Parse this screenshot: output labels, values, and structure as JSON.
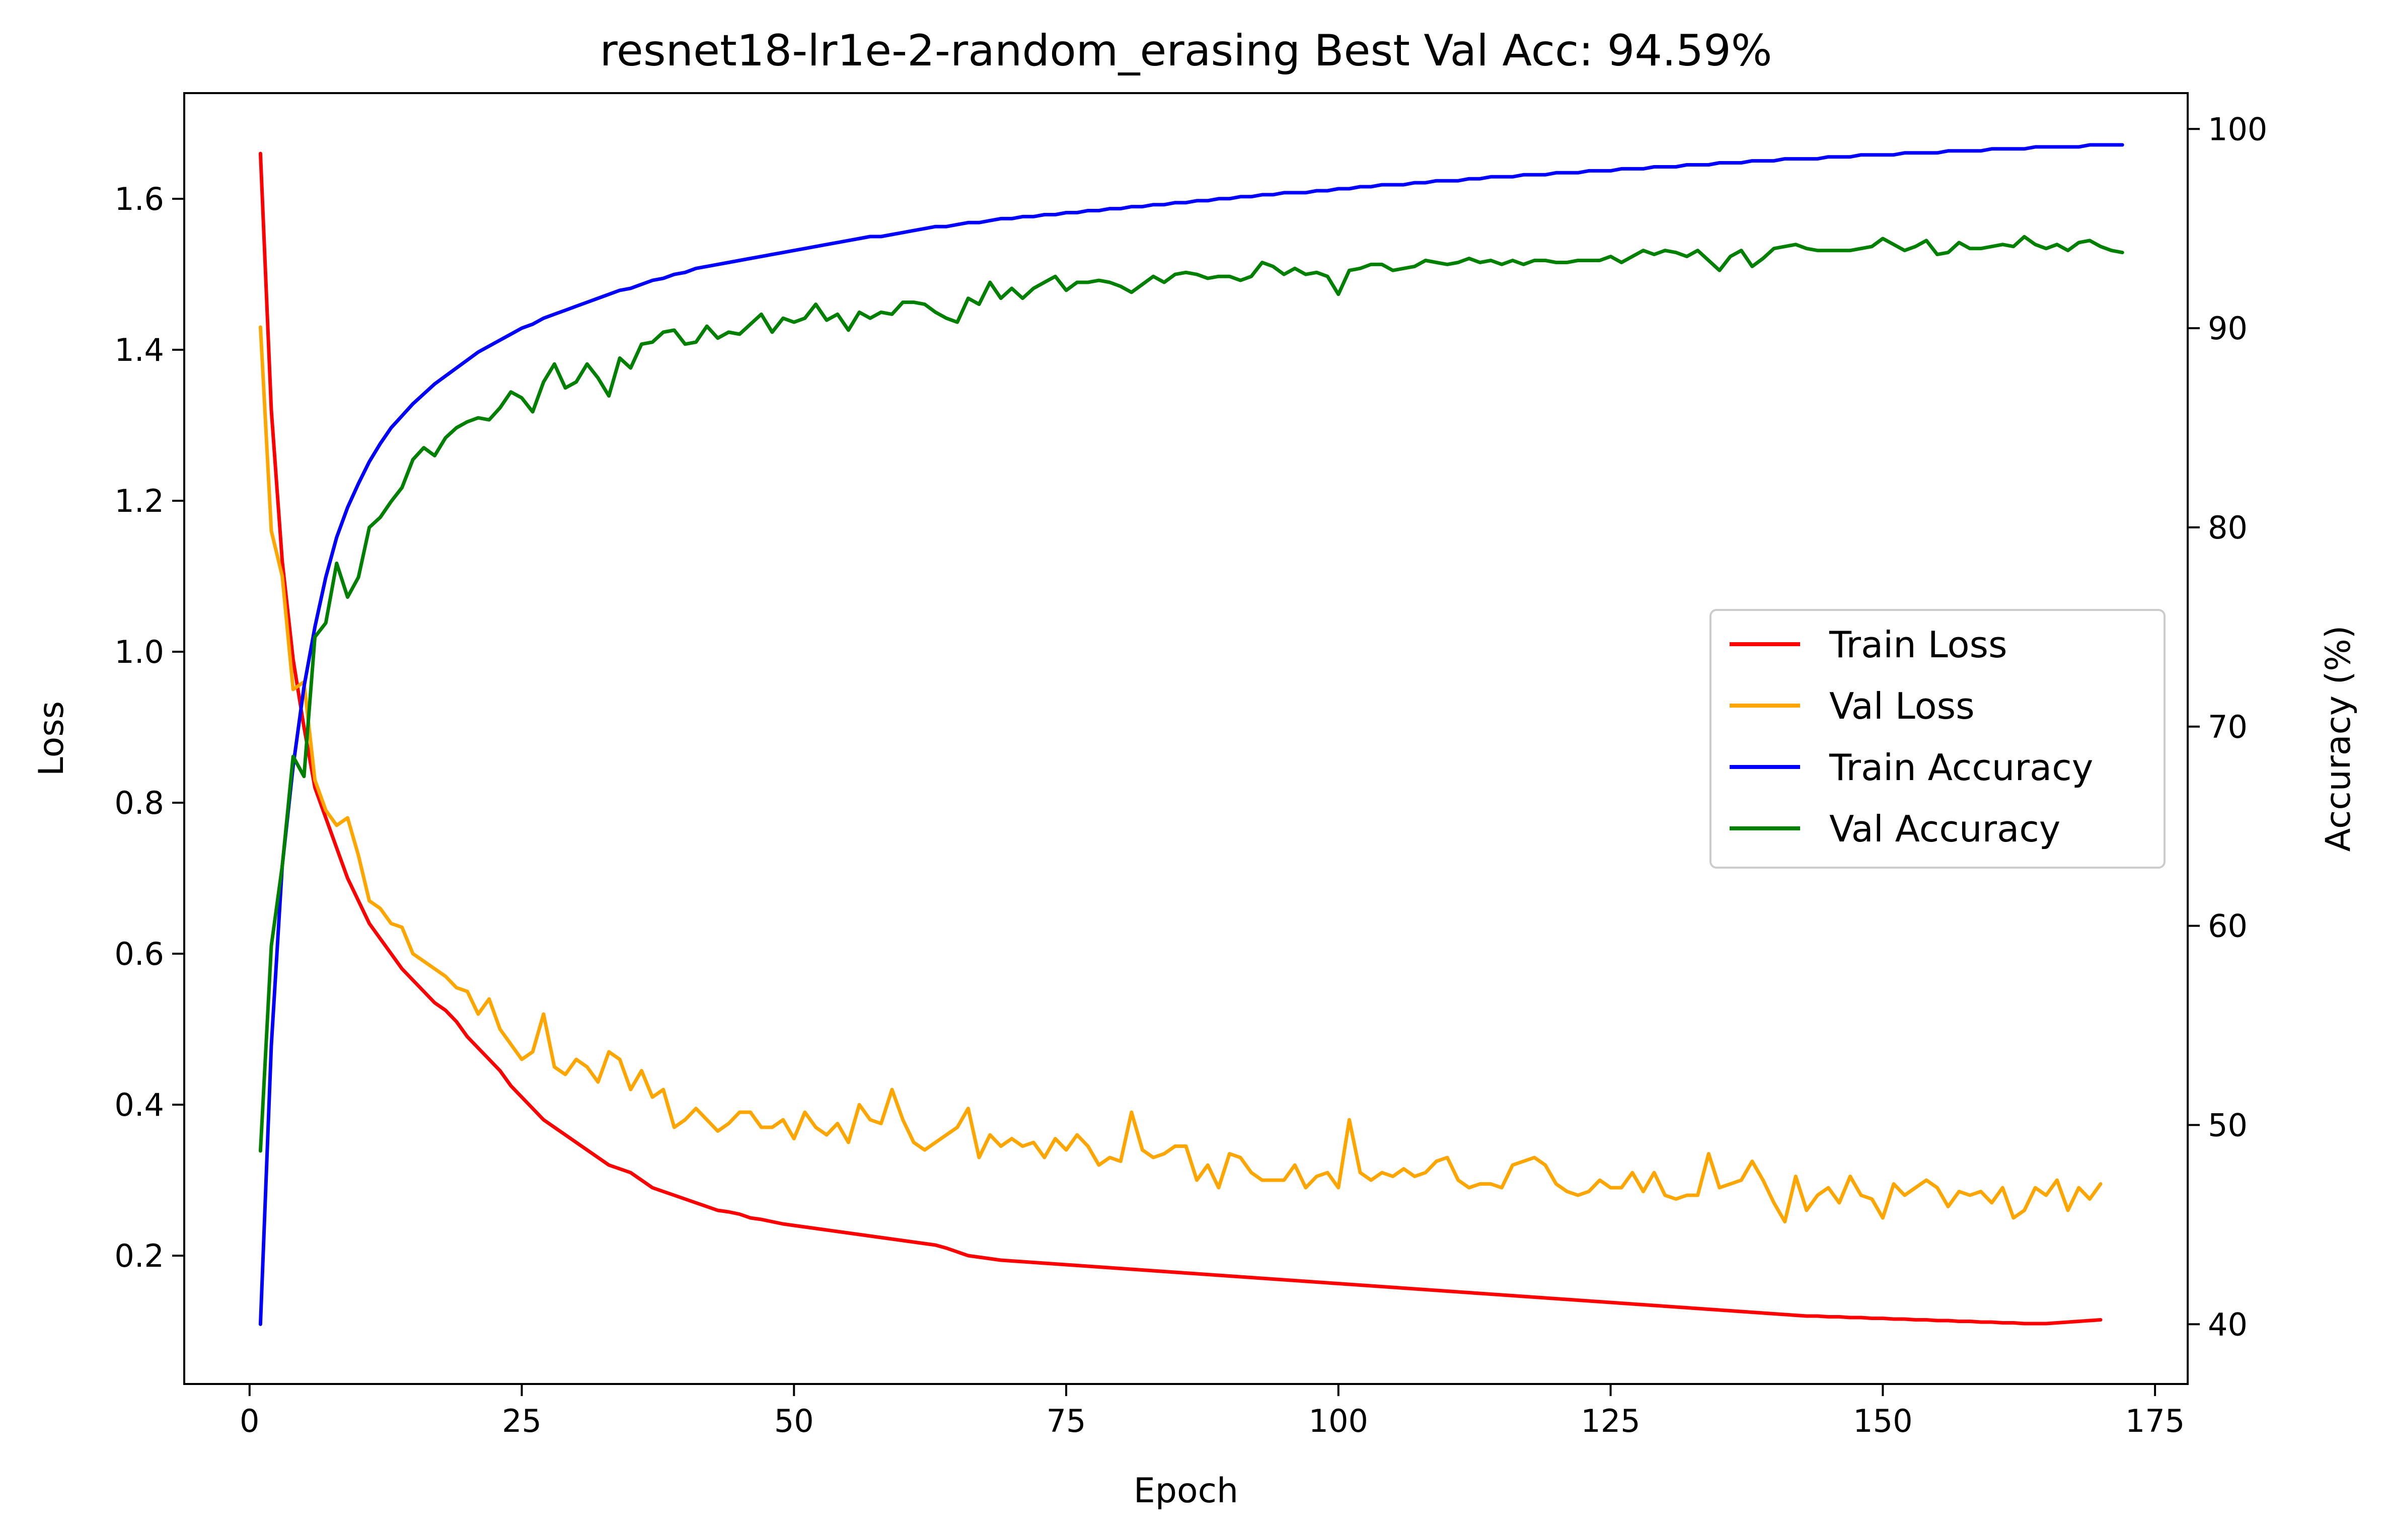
{
  "chart_data": {
    "type": "line",
    "title": "resnet18-lr1e-2-random_erasing Best Val Acc: 94.59%",
    "xlabel": "Epoch",
    "ylabel_left": "Loss",
    "ylabel_right": "Accuracy (%)",
    "xlim": [
      -6,
      178
    ],
    "ylim_left": [
      0.03,
      1.74
    ],
    "ylim_right": [
      37,
      101.8
    ],
    "x_ticks": [
      0,
      25,
      50,
      75,
      100,
      125,
      150,
      175
    ],
    "y_ticks_left": [
      0.2,
      0.4,
      0.6,
      0.8,
      1.0,
      1.2,
      1.4,
      1.6
    ],
    "y_ticks_left_labels": [
      "0.2",
      "0.4",
      "0.6",
      "0.8",
      "1.0",
      "1.2",
      "1.4",
      "1.6"
    ],
    "y_ticks_right": [
      40,
      50,
      60,
      70,
      80,
      90,
      100
    ],
    "legend_position": "center-right",
    "grid": false,
    "x_range": [
      1,
      170
    ],
    "series": [
      {
        "name": "Train Loss",
        "axis": "left",
        "color": "#ff0000",
        "values": [
          1.66,
          1.32,
          1.12,
          0.99,
          0.9,
          0.82,
          0.78,
          0.74,
          0.7,
          0.67,
          0.64,
          0.62,
          0.6,
          0.58,
          0.565,
          0.55,
          0.535,
          0.525,
          0.51,
          0.49,
          0.475,
          0.46,
          0.445,
          0.425,
          0.41,
          0.395,
          0.38,
          0.37,
          0.36,
          0.35,
          0.34,
          0.33,
          0.32,
          0.315,
          0.31,
          0.3,
          0.29,
          0.285,
          0.28,
          0.275,
          0.27,
          0.265,
          0.26,
          0.258,
          0.255,
          0.25,
          0.248,
          0.245,
          0.242,
          0.24,
          0.238,
          0.236,
          0.234,
          0.232,
          0.23,
          0.228,
          0.226,
          0.224,
          0.222,
          0.22,
          0.218,
          0.216,
          0.214,
          0.21,
          0.205,
          0.2,
          0.198,
          0.196,
          0.194,
          0.193,
          0.192,
          0.191,
          0.19,
          0.189,
          0.188,
          0.187,
          0.186,
          0.185,
          0.184,
          0.183,
          0.182,
          0.181,
          0.18,
          0.179,
          0.178,
          0.177,
          0.176,
          0.175,
          0.174,
          0.173,
          0.172,
          0.171,
          0.17,
          0.169,
          0.168,
          0.167,
          0.166,
          0.165,
          0.164,
          0.163,
          0.162,
          0.161,
          0.16,
          0.159,
          0.158,
          0.157,
          0.156,
          0.155,
          0.154,
          0.153,
          0.152,
          0.151,
          0.15,
          0.149,
          0.148,
          0.147,
          0.146,
          0.145,
          0.144,
          0.143,
          0.142,
          0.141,
          0.14,
          0.139,
          0.138,
          0.137,
          0.136,
          0.135,
          0.134,
          0.133,
          0.132,
          0.131,
          0.13,
          0.129,
          0.128,
          0.127,
          0.126,
          0.125,
          0.124,
          0.123,
          0.122,
          0.121,
          0.12,
          0.12,
          0.119,
          0.119,
          0.118,
          0.118,
          0.117,
          0.117,
          0.116,
          0.116,
          0.115,
          0.115,
          0.114,
          0.114,
          0.113,
          0.113,
          0.112,
          0.112,
          0.111,
          0.111,
          0.11,
          0.11,
          0.11,
          0.111,
          0.112,
          0.113,
          0.114,
          0.115
        ]
      },
      {
        "name": "Val Loss",
        "axis": "left",
        "color": "#ffa500",
        "values": [
          1.43,
          1.16,
          1.1,
          0.95,
          0.96,
          0.83,
          0.79,
          0.77,
          0.78,
          0.73,
          0.67,
          0.66,
          0.64,
          0.635,
          0.6,
          0.59,
          0.58,
          0.57,
          0.555,
          0.55,
          0.52,
          0.54,
          0.5,
          0.48,
          0.46,
          0.47,
          0.52,
          0.45,
          0.44,
          0.46,
          0.45,
          0.43,
          0.47,
          0.46,
          0.42,
          0.445,
          0.41,
          0.42,
          0.37,
          0.38,
          0.395,
          0.38,
          0.365,
          0.375,
          0.39,
          0.39,
          0.37,
          0.37,
          0.38,
          0.355,
          0.39,
          0.37,
          0.36,
          0.375,
          0.35,
          0.4,
          0.38,
          0.375,
          0.42,
          0.38,
          0.35,
          0.34,
          0.35,
          0.36,
          0.37,
          0.395,
          0.33,
          0.36,
          0.345,
          0.355,
          0.345,
          0.35,
          0.33,
          0.355,
          0.34,
          0.36,
          0.345,
          0.32,
          0.33,
          0.325,
          0.39,
          0.34,
          0.33,
          0.335,
          0.345,
          0.345,
          0.3,
          0.32,
          0.29,
          0.335,
          0.33,
          0.31,
          0.3,
          0.3,
          0.3,
          0.32,
          0.29,
          0.305,
          0.31,
          0.29,
          0.38,
          0.31,
          0.3,
          0.31,
          0.305,
          0.315,
          0.305,
          0.31,
          0.325,
          0.33,
          0.3,
          0.29,
          0.295,
          0.295,
          0.29,
          0.32,
          0.325,
          0.33,
          0.32,
          0.295,
          0.285,
          0.28,
          0.285,
          0.3,
          0.29,
          0.29,
          0.31,
          0.285,
          0.31,
          0.28,
          0.275,
          0.28,
          0.28,
          0.335,
          0.29,
          0.295,
          0.3,
          0.325,
          0.3,
          0.27,
          0.245,
          0.305,
          0.26,
          0.28,
          0.29,
          0.27,
          0.305,
          0.28,
          0.275,
          0.25,
          0.295,
          0.28,
          0.29,
          0.3,
          0.29,
          0.265,
          0.285,
          0.28,
          0.285,
          0.27,
          0.29,
          0.25,
          0.26,
          0.29,
          0.28,
          0.3,
          0.26,
          0.29,
          0.275,
          0.295
        ]
      },
      {
        "name": "Train Accuracy",
        "axis": "right",
        "color": "#0000ff",
        "values": [
          40,
          54,
          63,
          68,
          72,
          75,
          77.5,
          79.5,
          81,
          82.2,
          83.3,
          84.2,
          85,
          85.6,
          86.2,
          86.7,
          87.2,
          87.6,
          88,
          88.4,
          88.8,
          89.1,
          89.4,
          89.7,
          90,
          90.2,
          90.5,
          90.7,
          90.9,
          91.1,
          91.3,
          91.5,
          91.7,
          91.9,
          92,
          92.2,
          92.4,
          92.5,
          92.7,
          92.8,
          93,
          93.1,
          93.2,
          93.3,
          93.4,
          93.5,
          93.6,
          93.7,
          93.8,
          93.9,
          94,
          94.1,
          94.2,
          94.3,
          94.4,
          94.5,
          94.6,
          94.6,
          94.7,
          94.8,
          94.9,
          95,
          95.1,
          95.1,
          95.2,
          95.3,
          95.3,
          95.4,
          95.5,
          95.5,
          95.6,
          95.6,
          95.7,
          95.7,
          95.8,
          95.8,
          95.9,
          95.9,
          96,
          96,
          96.1,
          96.1,
          96.2,
          96.2,
          96.3,
          96.3,
          96.4,
          96.4,
          96.5,
          96.5,
          96.6,
          96.6,
          96.7,
          96.7,
          96.8,
          96.8,
          96.8,
          96.9,
          96.9,
          97,
          97,
          97.1,
          97.1,
          97.2,
          97.2,
          97.2,
          97.3,
          97.3,
          97.4,
          97.4,
          97.4,
          97.5,
          97.5,
          97.6,
          97.6,
          97.6,
          97.7,
          97.7,
          97.7,
          97.8,
          97.8,
          97.8,
          97.9,
          97.9,
          97.9,
          98,
          98,
          98,
          98.1,
          98.1,
          98.1,
          98.2,
          98.2,
          98.2,
          98.3,
          98.3,
          98.3,
          98.4,
          98.4,
          98.4,
          98.5,
          98.5,
          98.5,
          98.5,
          98.6,
          98.6,
          98.6,
          98.7,
          98.7,
          98.7,
          98.7,
          98.8,
          98.8,
          98.8,
          98.8,
          98.9,
          98.9,
          98.9,
          98.9,
          99,
          99,
          99,
          99,
          99.1,
          99.1,
          99.1,
          99.1,
          99.1,
          99.2,
          99.2,
          99.2,
          99.2
        ]
      },
      {
        "name": "Val Accuracy",
        "axis": "right",
        "color": "#008000",
        "values": [
          48.7,
          59,
          63,
          68.5,
          67.5,
          74.5,
          75.2,
          78.2,
          76.5,
          77.5,
          80,
          80.5,
          81.3,
          82,
          83.4,
          84,
          83.6,
          84.5,
          85,
          85.3,
          85.5,
          85.4,
          86,
          86.8,
          86.5,
          85.8,
          87.3,
          88.2,
          87,
          87.3,
          88.2,
          87.5,
          86.6,
          88.5,
          88,
          89.2,
          89.3,
          89.8,
          89.9,
          89.2,
          89.3,
          90.1,
          89.5,
          89.8,
          89.7,
          90.2,
          90.7,
          89.8,
          90.5,
          90.3,
          90.5,
          91.2,
          90.4,
          90.7,
          89.9,
          90.8,
          90.5,
          90.8,
          90.7,
          91.3,
          91.3,
          91.2,
          90.8,
          90.5,
          90.3,
          91.5,
          91.2,
          92.3,
          91.5,
          92,
          91.5,
          92,
          92.3,
          92.6,
          91.9,
          92.3,
          92.3,
          92.4,
          92.3,
          92.1,
          91.8,
          92.2,
          92.6,
          92.3,
          92.7,
          92.8,
          92.7,
          92.5,
          92.6,
          92.6,
          92.4,
          92.6,
          93.3,
          93.1,
          92.7,
          93,
          92.7,
          92.8,
          92.6,
          91.7,
          92.9,
          93,
          93.2,
          93.2,
          92.9,
          93,
          93.1,
          93.4,
          93.3,
          93.2,
          93.3,
          93.5,
          93.3,
          93.4,
          93.2,
          93.4,
          93.2,
          93.4,
          93.4,
          93.3,
          93.3,
          93.4,
          93.4,
          93.4,
          93.6,
          93.3,
          93.6,
          93.9,
          93.7,
          93.9,
          93.8,
          93.6,
          93.9,
          93.4,
          92.9,
          93.6,
          93.9,
          93.1,
          93.5,
          94,
          94.1,
          94.2,
          94,
          93.9,
          93.9,
          93.9,
          93.9,
          94,
          94.1,
          94.5,
          94.2,
          93.9,
          94.1,
          94.4,
          93.7,
          93.8,
          94.3,
          94,
          94,
          94.1,
          94.2,
          94.1,
          94.59,
          94.2,
          94,
          94.2,
          93.9,
          94.3,
          94.4,
          94.1,
          93.9,
          93.8
        ]
      }
    ]
  }
}
